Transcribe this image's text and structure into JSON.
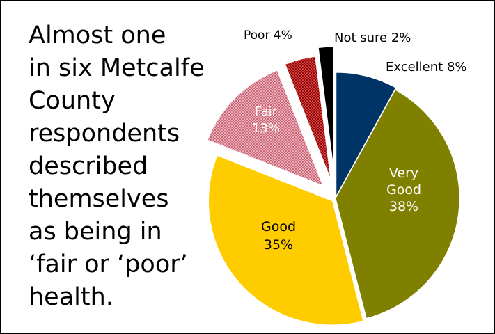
{
  "headline_lines": [
    "Almost one",
    "in six Metcalfe",
    "County",
    "respondents",
    "described",
    "themselves",
    "as being in",
    "‘fair or ‘poor’",
    "health."
  ],
  "chart_data": {
    "type": "pie",
    "title": "",
    "start_angle_deg": 0,
    "direction": "clockwise",
    "legend": "none",
    "slices": [
      {
        "id": "excellent",
        "label_lines": [
          "Excellent 8%"
        ],
        "value": 8,
        "color": "#003366",
        "pattern": "solid",
        "exploded": true,
        "label_position": "outside"
      },
      {
        "id": "very-good",
        "label_lines": [
          "Very",
          "Good",
          "38%"
        ],
        "value": 38,
        "color": "#808000",
        "pattern": "solid",
        "exploded": false,
        "label_position": "inside",
        "label_color": "#ffffff"
      },
      {
        "id": "good",
        "label_lines": [
          "Good",
          "35%"
        ],
        "value": 35,
        "color": "#ffcc00",
        "pattern": "solid",
        "exploded": true,
        "label_position": "inside",
        "label_color": "#000000"
      },
      {
        "id": "fair",
        "label_lines": [
          "Fair",
          "13%"
        ],
        "value": 13,
        "color": "#cc6677",
        "pattern": "checker",
        "exploded": true,
        "label_position": "inside",
        "label_color": "#ffffff"
      },
      {
        "id": "poor",
        "label_lines": [
          "Poor  4%"
        ],
        "value": 4,
        "color": "#990000",
        "pattern": "dots",
        "exploded": true,
        "label_position": "outside"
      },
      {
        "id": "not-sure",
        "label_lines": [
          "Not sure 2%"
        ],
        "value": 2,
        "color": "#000000",
        "pattern": "solid",
        "exploded": true,
        "label_position": "outside"
      }
    ]
  }
}
